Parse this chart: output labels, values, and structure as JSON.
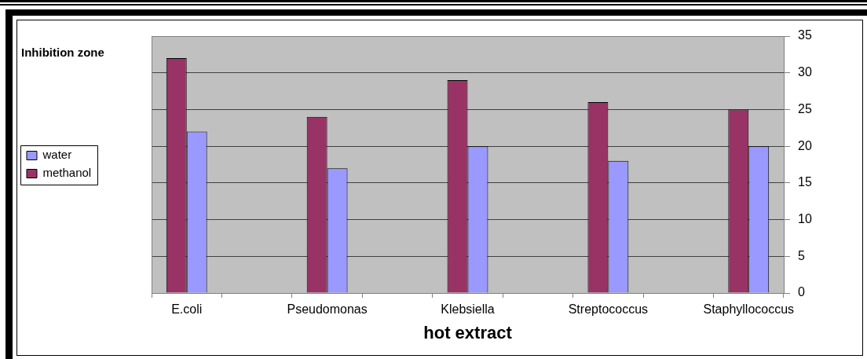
{
  "chart_data": {
    "type": "bar",
    "xlabel": "hot extract",
    "ylabel": "Inhibition zone",
    "categories": [
      "E.coli",
      null,
      "Pseudomonas",
      null,
      "Klebsiella",
      null,
      "Streptococcus",
      null,
      "Staphyllococcus"
    ],
    "series": [
      {
        "name": "methanol",
        "color": "#993366",
        "values": [
          32,
          null,
          24,
          null,
          29,
          null,
          26,
          null,
          25
        ]
      },
      {
        "name": "water",
        "color": "#9999ff",
        "values": [
          22,
          null,
          17,
          null,
          20,
          null,
          18,
          null,
          20
        ]
      }
    ],
    "ylim": [
      0,
      35
    ],
    "yticks": [
      0,
      5,
      10,
      15,
      20,
      25,
      30,
      35
    ],
    "grid": "y",
    "legend": "left"
  }
}
